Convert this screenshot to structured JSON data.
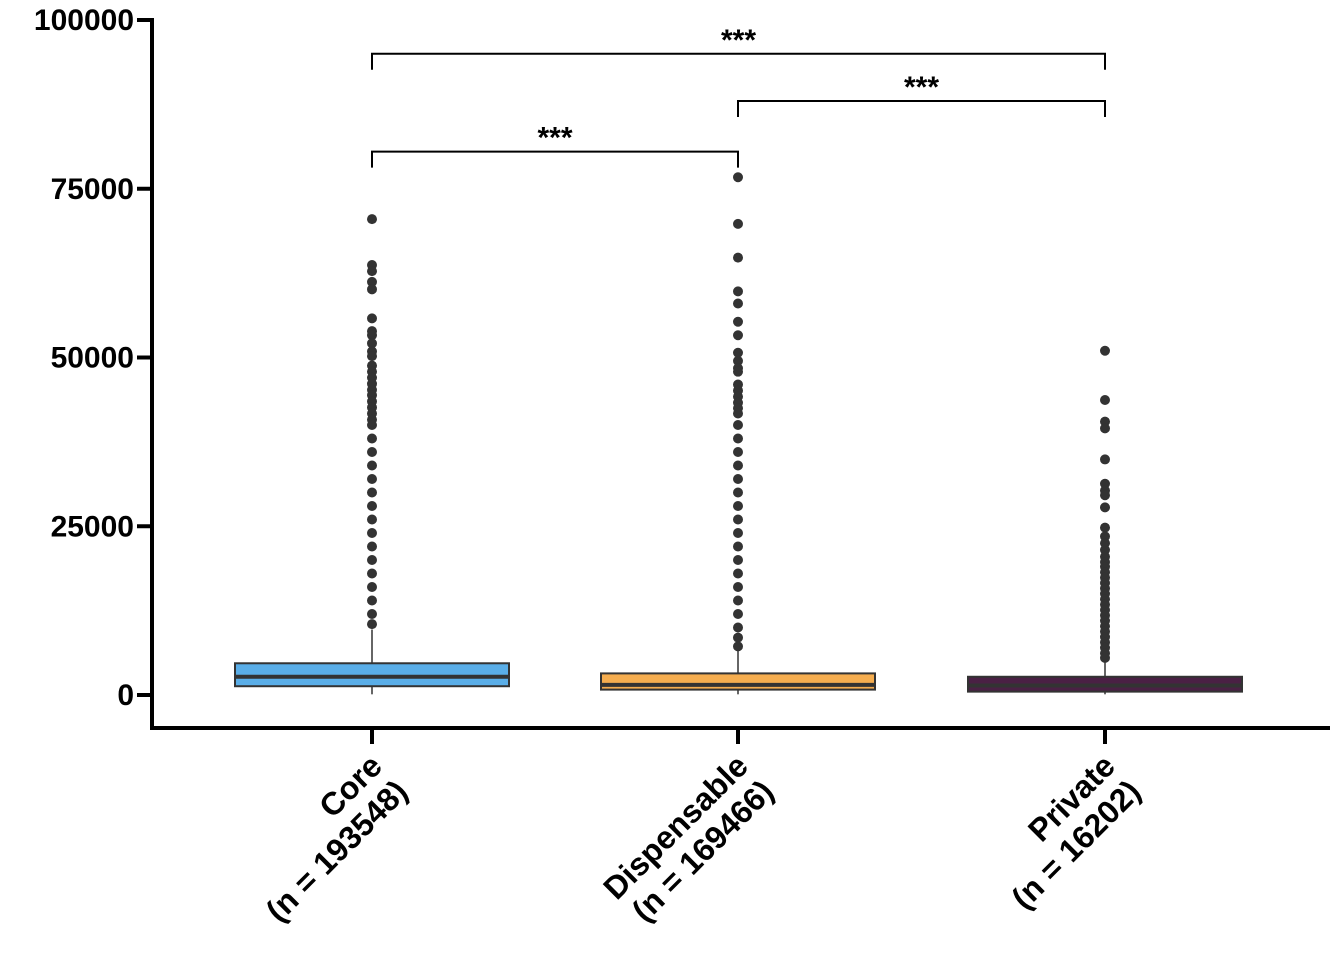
{
  "chart_data": {
    "type": "box",
    "title": "",
    "xlabel": "",
    "ylabel": "",
    "ylim": [
      -4900,
      100000
    ],
    "yticks": [
      0,
      25000,
      50000,
      75000,
      100000
    ],
    "ytick_labels": [
      "0",
      "25000",
      "50000",
      "75000",
      "100000"
    ],
    "grid": false,
    "legend": "none",
    "categories": [
      {
        "line1": "Core",
        "line2": "(n = 193548)"
      },
      {
        "line1": "Dispensable",
        "line2": "(n = 169466)"
      },
      {
        "line1": "Private",
        "line2": "(n = 16202)"
      }
    ],
    "boxes": [
      {
        "name": "Core",
        "color": "#5aaee8",
        "whisker_low": 100,
        "q1": 1300,
        "median": 2700,
        "q3": 4700,
        "whisker_high": 9700,
        "outliers": [
          70500,
          63700,
          62800,
          61200,
          60100,
          55800,
          53900,
          53300,
          52100,
          50900,
          50200,
          48800,
          47900,
          47000,
          46100,
          45200,
          44400,
          43500,
          42600,
          41700,
          40800,
          40000,
          38000,
          36000,
          34000,
          32000,
          30000,
          28000,
          26000,
          24000,
          22000,
          20000,
          18000,
          16000,
          14000,
          12000,
          10500
        ]
      },
      {
        "name": "Dispensable",
        "color": "#f5ad4f",
        "whisker_low": 100,
        "q1": 800,
        "median": 1500,
        "q3": 3200,
        "whisker_high": 6700,
        "outliers": [
          76700,
          69800,
          64800,
          59800,
          58000,
          55300,
          53300,
          50700,
          49500,
          48400,
          47900,
          46000,
          45100,
          44200,
          43300,
          42500,
          41700,
          40000,
          38000,
          36000,
          34000,
          32000,
          30000,
          28000,
          26000,
          24000,
          22000,
          20000,
          18000,
          16000,
          14000,
          12000,
          10000,
          8500,
          7200
        ]
      },
      {
        "name": "Private",
        "color": "#4a2044",
        "whisker_low": 100,
        "q1": 500,
        "median": 1400,
        "q3": 2700,
        "whisker_high": 5000,
        "outliers": [
          51000,
          43700,
          40500,
          39500,
          34900,
          31300,
          30300,
          29600,
          27800,
          24800,
          23500,
          22500,
          21500,
          20500,
          19700,
          19000,
          18200,
          17400,
          16600,
          15800,
          15000,
          14200,
          13400,
          12600,
          11800,
          11000,
          10200,
          9400,
          8600,
          7800,
          7000,
          6200,
          5500
        ]
      }
    ],
    "significance": [
      {
        "from": 0,
        "to": 2,
        "label": "***",
        "y": 95000
      },
      {
        "from": 1,
        "to": 2,
        "label": "***",
        "y": 88000
      },
      {
        "from": 0,
        "to": 1,
        "label": "***",
        "y": 80500
      }
    ]
  }
}
